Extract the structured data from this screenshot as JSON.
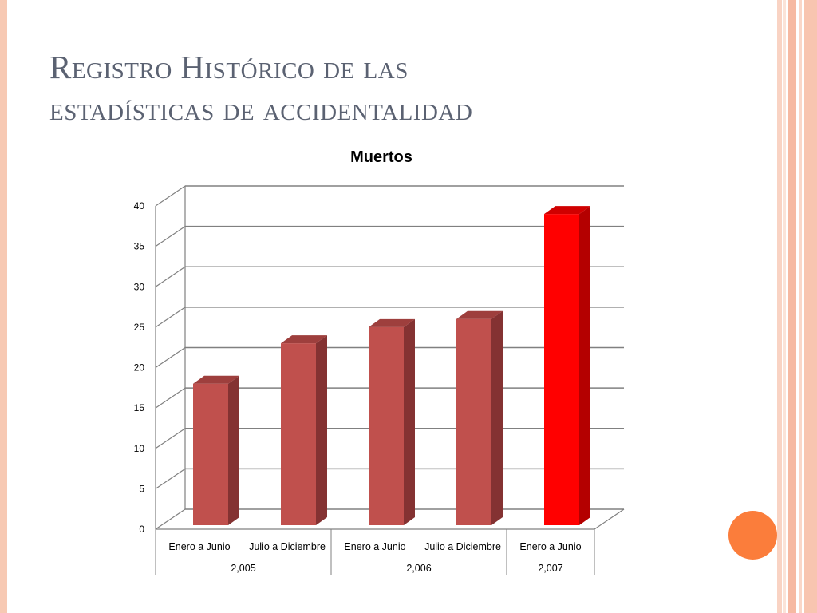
{
  "slide": {
    "title_line1": "Registro Histórico de las",
    "title_line2": "estadísticas de accidentalidad"
  },
  "theme": {
    "border_color": "#f7c9b3",
    "title_color": "#5b6272",
    "bar_color": "#c0504d",
    "highlight_bar_color": "#ff0000",
    "accent_circle_color": "#fb7d3b"
  },
  "chart_data": {
    "type": "bar",
    "title": "Muertos",
    "categories": [
      "Enero a Junio",
      "Julio a Diciembre",
      "Enero a Junio",
      "Julio a Diciembre",
      "Enero a Junio"
    ],
    "groups": [
      {
        "label": "2,005",
        "span": 2
      },
      {
        "label": "2,006",
        "span": 2
      },
      {
        "label": "2,007",
        "span": 1
      }
    ],
    "values": [
      18,
      23,
      25,
      26,
      39
    ],
    "highlight_index": 4,
    "ylim": [
      0,
      40
    ],
    "yticks": [
      0,
      5,
      10,
      15,
      20,
      25,
      30,
      35,
      40
    ],
    "grid": true,
    "style": "3d-column",
    "legend": "none"
  }
}
